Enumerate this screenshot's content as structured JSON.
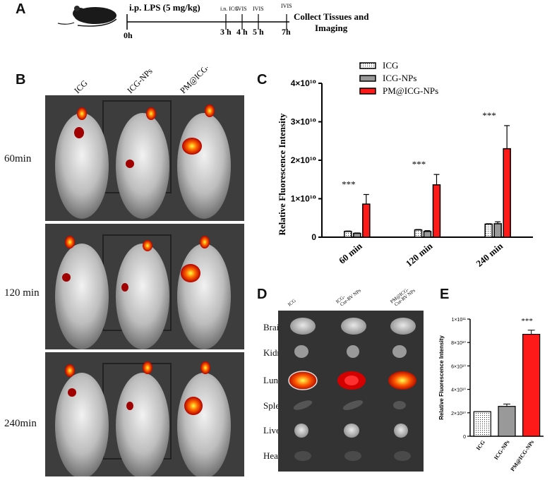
{
  "panels": {
    "A": "A",
    "B": "B",
    "C": "C",
    "D": "D",
    "E": "E"
  },
  "timeline": {
    "injection": "i.p. LPS (5 mg/kg)",
    "start": "0h",
    "events": [
      {
        "label": "i.n. ICG",
        "time": "3 h"
      },
      {
        "label": "IVIS",
        "time": "4 h"
      },
      {
        "label": "IVIS",
        "time": "5 h"
      },
      {
        "label": "IVIS",
        "time": "7h"
      }
    ],
    "end_line1": "Collect Tissues and",
    "end_line2": "Imaging"
  },
  "panel_b": {
    "columns": [
      "ICG",
      "ICG-NPs",
      "PM@ICG-NPs"
    ],
    "rows": [
      "60min",
      "120 min",
      "240min"
    ]
  },
  "panel_d": {
    "columns": [
      "ICG",
      "ICG-\nCur-RV NPs",
      "PM@ICG-\nCur-RV NPs"
    ],
    "col1": "ICG",
    "col2a": "ICG-",
    "col2b": "Cur-RV NPs",
    "col3a": "PM@ICG-",
    "col3b": "Cur-RV NPs",
    "organs": [
      "Brain",
      "Kidney",
      "Lung",
      "Spleen",
      "Liver",
      "Heart"
    ]
  },
  "chart_data": [
    {
      "id": "C",
      "type": "bar",
      "categories": [
        "60 min",
        "120 min",
        "240 min"
      ],
      "ylabel": "Relative Fluorescence Intensity",
      "ylim": [
        0,
        40000000000.0
      ],
      "yticks": [
        {
          "value": 0,
          "label": "0"
        },
        {
          "value": 10000000000.0,
          "label": "1×10¹⁰"
        },
        {
          "value": 20000000000.0,
          "label": "2×10¹⁰"
        },
        {
          "value": 30000000000.0,
          "label": "3×10¹⁰"
        },
        {
          "value": 40000000000.0,
          "label": "4×10¹⁰"
        }
      ],
      "series": [
        {
          "name": "ICG",
          "color": "#ffffff",
          "pattern": "dots",
          "values": [
            1500000000.0,
            1900000000.0,
            3400000000.0
          ],
          "errors": [
            100000000.0,
            100000000.0,
            100000000.0
          ]
        },
        {
          "name": "ICG-NPs",
          "color": "#999999",
          "values": [
            1000000000.0,
            1500000000.0,
            3500000000.0
          ],
          "errors": [
            100000000.0,
            200000000.0,
            500000000.0
          ]
        },
        {
          "name": "PM@ICG-NPs",
          "color": "#ff1a1a",
          "values": [
            8600000000.0,
            13600000000.0,
            23000000000.0
          ],
          "errors": [
            2500000000.0,
            2700000000.0,
            6000000000.0
          ]
        }
      ],
      "significance": [
        "***",
        "***",
        "***"
      ],
      "legend": "top"
    },
    {
      "id": "E",
      "type": "bar",
      "categories": [
        "ICG",
        "ICG-NPs",
        "PM@ICG-NPs"
      ],
      "ylabel": "Relative Fluorescence Intensity",
      "ylim": [
        0,
        100000000000.0
      ],
      "yticks": [
        {
          "value": 0,
          "label": "0"
        },
        {
          "value": 20000000000.0,
          "label": "2×10¹⁰"
        },
        {
          "value": 40000000000.0,
          "label": "4×10¹⁰"
        },
        {
          "value": 60000000000.0,
          "label": "6×10¹⁰"
        },
        {
          "value": 80000000000.0,
          "label": "8×10¹⁰"
        },
        {
          "value": 100000000000.0,
          "label": "1×10¹¹"
        }
      ],
      "series": [
        {
          "name": "",
          "colors": [
            "#ffffff",
            "#999999",
            "#ff1a1a"
          ],
          "values": [
            21000000000.0,
            25500000000.0,
            87000000000.0
          ],
          "errors": [
            0,
            2000000000.0,
            3500000000.0
          ]
        }
      ],
      "significance": [
        "",
        "",
        "***"
      ]
    }
  ]
}
